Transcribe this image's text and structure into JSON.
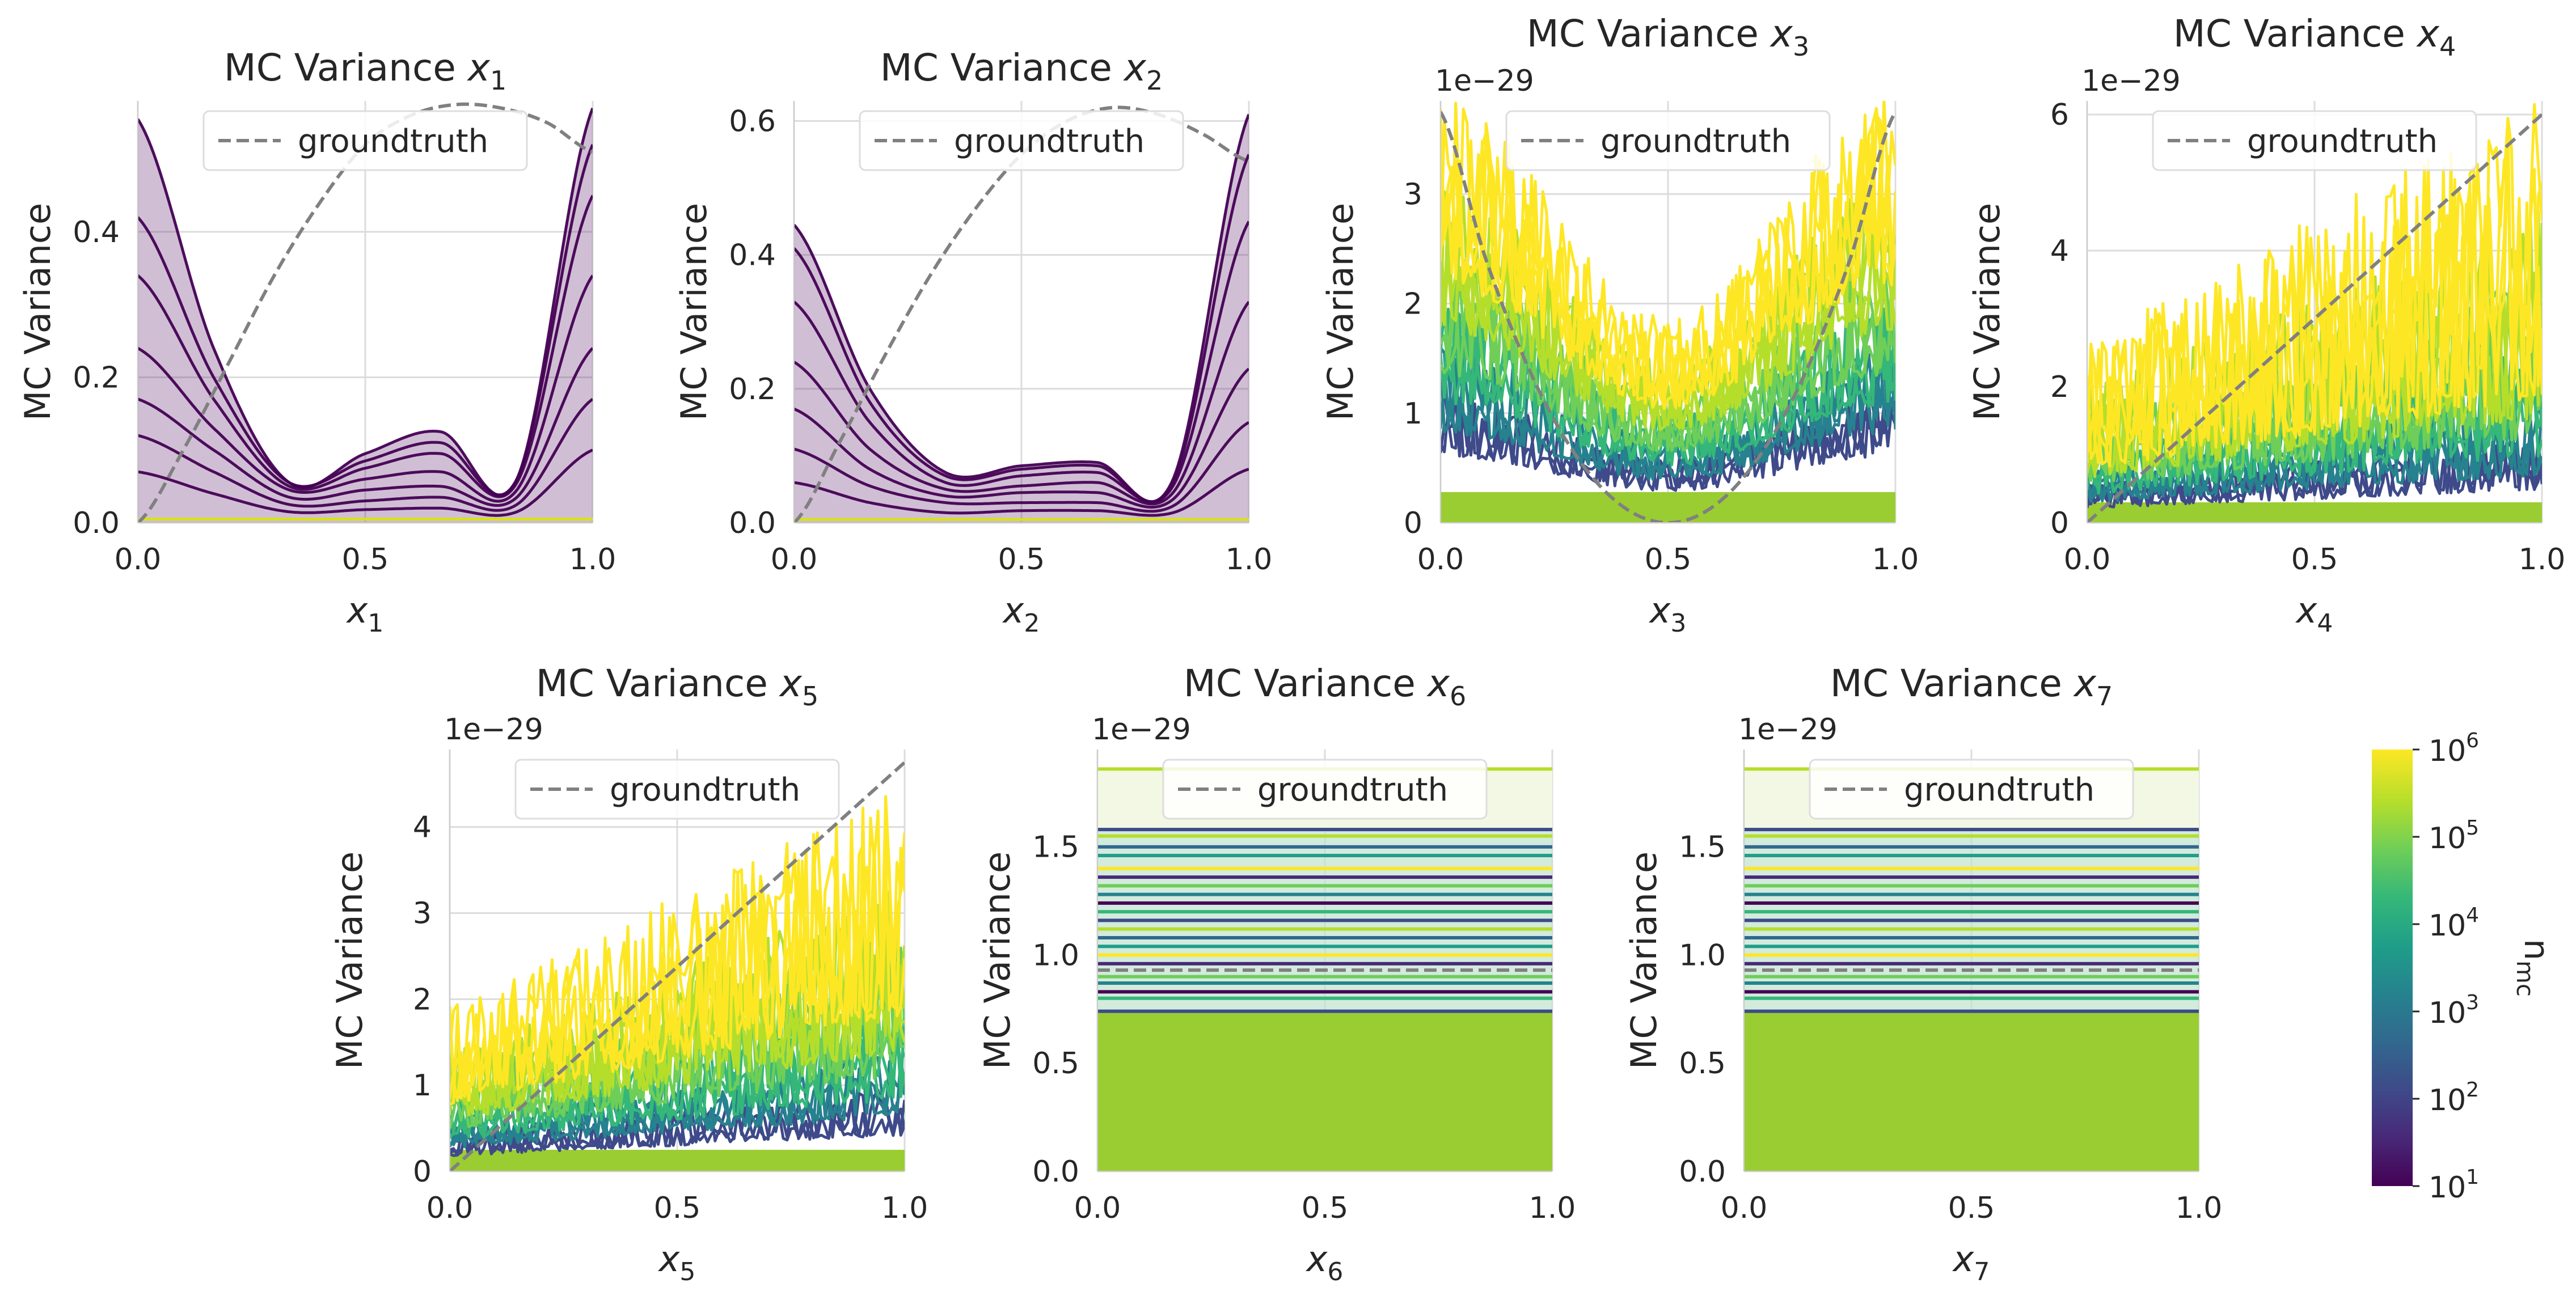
{
  "colors": {
    "groundtruth": "#808080",
    "grid": "#dcdcdc",
    "fill_low": "#440154",
    "fill_high": "#9acd32",
    "viridis": [
      "#440154",
      "#482878",
      "#3e4a89",
      "#31688e",
      "#26828e",
      "#1f9e89",
      "#35b779",
      "#6ece58",
      "#b5de2b",
      "#fde725"
    ]
  },
  "legend": {
    "groundtruth_label": "groundtruth"
  },
  "colorbar": {
    "label": "n",
    "label_sub": "mc",
    "scale": "log",
    "range": [
      10,
      1000000
    ],
    "ticks": [
      {
        "base": "10",
        "exp": "1"
      },
      {
        "base": "10",
        "exp": "2"
      },
      {
        "base": "10",
        "exp": "3"
      },
      {
        "base": "10",
        "exp": "4"
      },
      {
        "base": "10",
        "exp": "5"
      },
      {
        "base": "10",
        "exp": "6"
      }
    ]
  },
  "chart_data": [
    {
      "type": "line",
      "title": "MC Variance ",
      "var": "x",
      "sub": "1",
      "ylabel": "MC Variance",
      "offset": "",
      "xlim": [
        0,
        1
      ],
      "ylim": [
        0,
        0.58
      ],
      "xticks": [
        {
          "v": 0,
          "label": "0.0"
        },
        {
          "v": 0.5,
          "label": "0.5"
        },
        {
          "v": 1,
          "label": "1.0"
        }
      ],
      "yticks": [
        {
          "v": 0,
          "label": "0.0"
        },
        {
          "v": 0.2,
          "label": "0.2"
        },
        {
          "v": 0.4,
          "label": "0.4"
        }
      ],
      "groundtruth": {
        "x": [
          0,
          0.1,
          0.2,
          0.3,
          0.4,
          0.5,
          0.6,
          0.7,
          0.8,
          0.9,
          1.0
        ],
        "y": [
          0.0,
          0.1,
          0.22,
          0.34,
          0.44,
          0.52,
          0.56,
          0.575,
          0.57,
          0.55,
          0.51
        ]
      },
      "mc_curves": [
        {
          "n_mc": 10,
          "y": [
            0.555,
            0.24,
            0.055,
            0.095,
            0.125,
            0.06,
            0.57
          ]
        },
        {
          "n_mc": 20,
          "y": [
            0.42,
            0.2,
            0.055,
            0.085,
            0.11,
            0.06,
            0.52
          ]
        },
        {
          "n_mc": 40,
          "y": [
            0.34,
            0.17,
            0.05,
            0.075,
            0.095,
            0.055,
            0.45
          ]
        },
        {
          "n_mc": 100,
          "y": [
            0.24,
            0.13,
            0.045,
            0.06,
            0.07,
            0.045,
            0.34
          ]
        },
        {
          "n_mc": 300,
          "y": [
            0.17,
            0.1,
            0.035,
            0.045,
            0.05,
            0.035,
            0.24
          ]
        },
        {
          "n_mc": 1000,
          "y": [
            0.12,
            0.07,
            0.025,
            0.03,
            0.035,
            0.025,
            0.17
          ]
        },
        {
          "n_mc": 5000,
          "y": [
            0.07,
            0.04,
            0.015,
            0.018,
            0.02,
            0.015,
            0.1
          ]
        },
        {
          "n_mc": 1000000,
          "y": [
            0.005,
            0.005,
            0.005,
            0.005,
            0.005,
            0.005,
            0.005
          ]
        }
      ]
    },
    {
      "type": "line",
      "title": "MC Variance ",
      "var": "x",
      "sub": "2",
      "ylabel": "MC Variance",
      "offset": "",
      "xlim": [
        0,
        1
      ],
      "ylim": [
        0,
        0.63
      ],
      "xticks": [
        {
          "v": 0,
          "label": "0.0"
        },
        {
          "v": 0.5,
          "label": "0.5"
        },
        {
          "v": 1,
          "label": "1.0"
        }
      ],
      "yticks": [
        {
          "v": 0,
          "label": "0.0"
        },
        {
          "v": 0.2,
          "label": "0.2"
        },
        {
          "v": 0.4,
          "label": "0.4"
        },
        {
          "v": 0.6,
          "label": "0.6"
        }
      ],
      "groundtruth": {
        "x": [
          0,
          0.1,
          0.2,
          0.3,
          0.4,
          0.5,
          0.6,
          0.7,
          0.8,
          0.9,
          1.0
        ],
        "y": [
          0.0,
          0.12,
          0.25,
          0.37,
          0.47,
          0.55,
          0.6,
          0.62,
          0.61,
          0.58,
          0.54
        ]
      },
      "mc_curves": [
        {
          "n_mc": 10,
          "y": [
            0.445,
            0.2,
            0.075,
            0.085,
            0.09,
            0.065,
            0.61
          ]
        },
        {
          "n_mc": 20,
          "y": [
            0.41,
            0.18,
            0.07,
            0.08,
            0.085,
            0.06,
            0.55
          ]
        },
        {
          "n_mc": 40,
          "y": [
            0.33,
            0.15,
            0.06,
            0.07,
            0.075,
            0.055,
            0.45
          ]
        },
        {
          "n_mc": 100,
          "y": [
            0.24,
            0.11,
            0.05,
            0.055,
            0.06,
            0.045,
            0.33
          ]
        },
        {
          "n_mc": 300,
          "y": [
            0.17,
            0.08,
            0.04,
            0.045,
            0.045,
            0.035,
            0.23
          ]
        },
        {
          "n_mc": 1000,
          "y": [
            0.11,
            0.055,
            0.03,
            0.03,
            0.03,
            0.025,
            0.15
          ]
        },
        {
          "n_mc": 5000,
          "y": [
            0.06,
            0.03,
            0.015,
            0.018,
            0.018,
            0.015,
            0.08
          ]
        },
        {
          "n_mc": 1000000,
          "y": [
            0.005,
            0.005,
            0.005,
            0.005,
            0.005,
            0.005,
            0.005
          ]
        }
      ]
    },
    {
      "type": "line",
      "title": "MC Variance ",
      "var": "x",
      "sub": "3",
      "ylabel": "MC Variance",
      "offset": "1e−29",
      "xlim": [
        0,
        1
      ],
      "ylim": [
        0,
        3.85
      ],
      "xticks": [
        {
          "v": 0,
          "label": "0.0"
        },
        {
          "v": 0.5,
          "label": "0.5"
        },
        {
          "v": 1,
          "label": "1.0"
        }
      ],
      "yticks": [
        {
          "v": 0,
          "label": "0"
        },
        {
          "v": 1,
          "label": "1"
        },
        {
          "v": 2,
          "label": "2"
        },
        {
          "v": 3,
          "label": "3"
        }
      ],
      "groundtruth": {
        "x": [
          0,
          0.1,
          0.2,
          0.3,
          0.4,
          0.5,
          0.6,
          0.7,
          0.8,
          0.9,
          1.0
        ],
        "y": [
          3.75,
          2.4,
          1.35,
          0.6,
          0.15,
          0.0,
          0.15,
          0.6,
          1.35,
          2.4,
          3.75
        ]
      },
      "noise": {
        "fill_level": 0.28,
        "bands": [
          [
            0.45,
            0.9
          ],
          [
            0.6,
            1.2
          ],
          [
            0.8,
            1.5
          ],
          [
            1.0,
            1.8
          ],
          [
            1.3,
            2.3
          ],
          [
            1.6,
            2.9
          ]
        ]
      }
    },
    {
      "type": "line",
      "title": "MC Variance ",
      "var": "x",
      "sub": "4",
      "ylabel": "MC Variance",
      "offset": "1e−29",
      "xlim": [
        0,
        1
      ],
      "ylim": [
        0,
        6.2
      ],
      "xticks": [
        {
          "v": 0,
          "label": "0.0"
        },
        {
          "v": 0.5,
          "label": "0.5"
        },
        {
          "v": 1,
          "label": "1.0"
        }
      ],
      "yticks": [
        {
          "v": 0,
          "label": "0"
        },
        {
          "v": 2,
          "label": "2"
        },
        {
          "v": 4,
          "label": "4"
        },
        {
          "v": 6,
          "label": "6"
        }
      ],
      "groundtruth": {
        "x": [
          0,
          1
        ],
        "y": [
          0,
          6.0
        ]
      },
      "noise": {
        "fill_level": 0.3,
        "bands": [
          [
            0.35,
            0.9
          ],
          [
            0.5,
            1.3
          ],
          [
            0.7,
            1.9
          ],
          [
            0.9,
            2.6
          ],
          [
            1.1,
            3.3
          ],
          [
            1.3,
            4.5
          ]
        ]
      }
    },
    {
      "type": "line",
      "title": "MC Variance ",
      "var": "x",
      "sub": "5",
      "ylabel": "MC Variance",
      "offset": "1e−29",
      "xlim": [
        0,
        1
      ],
      "ylim": [
        0,
        4.9
      ],
      "xticks": [
        {
          "v": 0,
          "label": "0.0"
        },
        {
          "v": 0.5,
          "label": "0.5"
        },
        {
          "v": 1,
          "label": "1.0"
        }
      ],
      "yticks": [
        {
          "v": 0,
          "label": "0"
        },
        {
          "v": 1,
          "label": "1"
        },
        {
          "v": 2,
          "label": "2"
        },
        {
          "v": 3,
          "label": "3"
        },
        {
          "v": 4,
          "label": "4"
        }
      ],
      "groundtruth": {
        "x": [
          0,
          1
        ],
        "y": [
          0,
          4.75
        ]
      },
      "noise": {
        "fill_level": 0.25,
        "bands": [
          [
            0.3,
            0.7
          ],
          [
            0.45,
            1.0
          ],
          [
            0.6,
            1.4
          ],
          [
            0.8,
            1.9
          ],
          [
            1.0,
            2.4
          ],
          [
            1.3,
            3.2
          ]
        ]
      }
    },
    {
      "type": "line",
      "title": "MC Variance ",
      "var": "x",
      "sub": "6",
      "ylabel": "MC Variance",
      "offset": "1e−29",
      "xlim": [
        0,
        1
      ],
      "ylim": [
        0,
        1.95
      ],
      "xticks": [
        {
          "v": 0,
          "label": "0.0"
        },
        {
          "v": 0.5,
          "label": "0.5"
        },
        {
          "v": 1,
          "label": "1.0"
        }
      ],
      "yticks": [
        {
          "v": 0,
          "label": "0.0"
        },
        {
          "v": 0.5,
          "label": "0.5"
        },
        {
          "v": 1.0,
          "label": "1.0"
        },
        {
          "v": 1.5,
          "label": "1.5"
        }
      ],
      "groundtruth": {
        "x": [
          0,
          1
        ],
        "y": [
          0.93,
          0.93
        ]
      },
      "flat_levels": [
        0.74,
        0.8,
        0.83,
        0.87,
        0.9,
        0.96,
        1.0,
        1.04,
        1.08,
        1.12,
        1.16,
        1.2,
        1.24,
        1.28,
        1.32,
        1.36,
        1.4,
        1.46,
        1.5,
        1.55,
        1.58,
        1.86
      ],
      "fill_level": 0.74
    },
    {
      "type": "line",
      "title": "MC Variance ",
      "var": "x",
      "sub": "7",
      "ylabel": "MC Variance",
      "offset": "1e−29",
      "xlim": [
        0,
        1
      ],
      "ylim": [
        0,
        1.95
      ],
      "xticks": [
        {
          "v": 0,
          "label": "0.0"
        },
        {
          "v": 0.5,
          "label": "0.5"
        },
        {
          "v": 1,
          "label": "1.0"
        }
      ],
      "yticks": [
        {
          "v": 0,
          "label": "0.0"
        },
        {
          "v": 0.5,
          "label": "0.5"
        },
        {
          "v": 1.0,
          "label": "1.0"
        },
        {
          "v": 1.5,
          "label": "1.5"
        }
      ],
      "groundtruth": {
        "x": [
          0,
          1
        ],
        "y": [
          0.93,
          0.93
        ]
      },
      "flat_levels": [
        0.74,
        0.8,
        0.83,
        0.87,
        0.9,
        0.96,
        1.0,
        1.04,
        1.08,
        1.12,
        1.16,
        1.2,
        1.24,
        1.28,
        1.32,
        1.36,
        1.4,
        1.46,
        1.5,
        1.55,
        1.58,
        1.86
      ],
      "fill_level": 0.74
    }
  ]
}
